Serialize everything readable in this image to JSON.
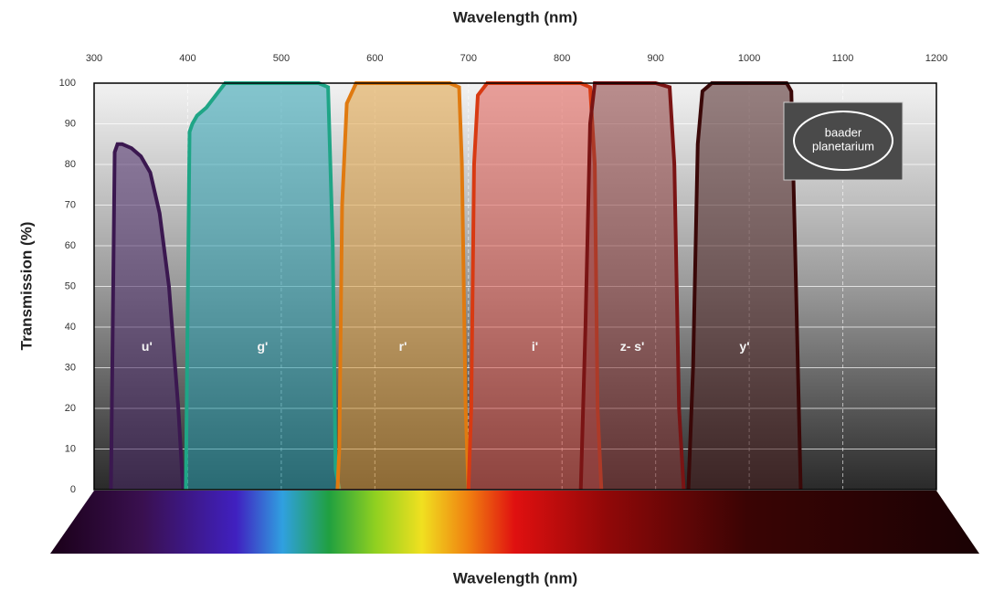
{
  "chart_data": {
    "type": "area",
    "xlabel": "Wavelength (nm)",
    "xlabel_bottom": "Wavelength (nm)",
    "ylabel": "Transmission (%)",
    "logo": [
      "baader",
      "planetarium"
    ],
    "xlim": [
      300,
      1200
    ],
    "xticks": [
      300,
      400,
      500,
      600,
      700,
      800,
      900,
      1000,
      1100,
      1200
    ],
    "ylim": [
      0,
      100
    ],
    "yticks": [
      0,
      10,
      20,
      30,
      40,
      50,
      60,
      70,
      80,
      90,
      100
    ],
    "grid": true,
    "series": [
      {
        "name": "u'",
        "color": "#3b1850",
        "fill": "#4a2a68",
        "x": [
          318,
          322,
          325,
          330,
          340,
          350,
          360,
          370,
          380,
          390,
          395
        ],
        "values": [
          0,
          83,
          85,
          85,
          84,
          82,
          78,
          68,
          50,
          20,
          0
        ]
      },
      {
        "name": "g'",
        "color": "#1fa586",
        "fill": "#2aa0b0",
        "x": [
          398,
          402,
          405,
          410,
          420,
          430,
          440,
          450,
          500,
          540,
          550,
          555,
          558,
          562
        ],
        "values": [
          0,
          88,
          90,
          92,
          94,
          97,
          100,
          100,
          100,
          100,
          99,
          60,
          5,
          0
        ]
      },
      {
        "name": "r'",
        "color": "#e07a10",
        "fill": "#e0a040",
        "x": [
          560,
          562,
          565,
          570,
          580,
          600,
          650,
          680,
          690,
          693,
          697,
          700
        ],
        "values": [
          0,
          10,
          70,
          95,
          100,
          100,
          100,
          100,
          99,
          80,
          20,
          0
        ]
      },
      {
        "name": "i'",
        "color": "#d83a12",
        "fill": "#e05a50",
        "x": [
          700,
          703,
          706,
          710,
          720,
          800,
          820,
          830,
          835,
          838,
          842
        ],
        "values": [
          0,
          20,
          80,
          97,
          100,
          100,
          100,
          99,
          80,
          20,
          0
        ]
      },
      {
        "name": "z- s'",
        "color": "#7a1414",
        "fill": "#8a3a3a",
        "x": [
          820,
          825,
          830,
          835,
          845,
          900,
          915,
          920,
          925,
          930
        ],
        "values": [
          0,
          40,
          90,
          100,
          100,
          100,
          99,
          80,
          20,
          0
        ]
      },
      {
        "name": "y'",
        "color": "#3a0808",
        "fill": "#4a2020",
        "x": [
          935,
          940,
          945,
          950,
          960,
          1000,
          1040,
          1045,
          1050,
          1055
        ],
        "values": [
          0,
          30,
          85,
          98,
          100,
          100,
          100,
          98,
          50,
          0
        ]
      }
    ]
  }
}
